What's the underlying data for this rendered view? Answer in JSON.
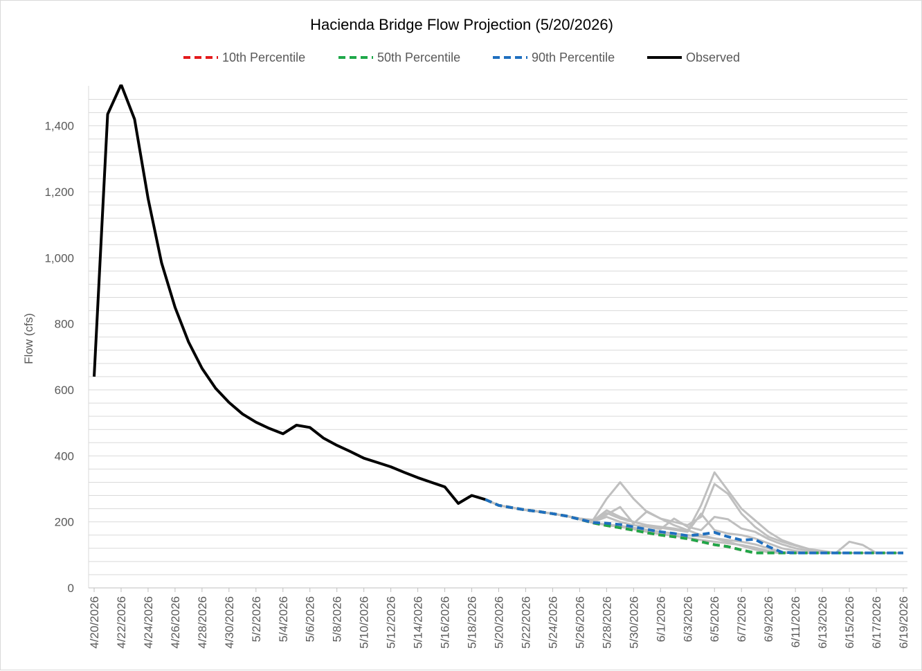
{
  "chart_data": {
    "type": "line",
    "title": "Hacienda Bridge Flow Projection (5/20/2026)",
    "xlabel": "",
    "ylabel": "Flow (cfs)",
    "ylim": [
      0,
      1500
    ],
    "y_ticks": [
      0,
      200,
      400,
      600,
      800,
      1000,
      1200,
      1400
    ],
    "y_tick_labels": [
      "0",
      "200",
      "400",
      "600",
      "800",
      "1,000",
      "1,200",
      "1,400"
    ],
    "y_grid_step": 40,
    "grid": true,
    "legend_position": "top",
    "x_range": [
      "4/20/2026",
      "6/19/2026"
    ],
    "x_tick_labels": [
      "4/20/2026",
      "4/22/2026",
      "4/24/2026",
      "4/26/2026",
      "4/28/2026",
      "4/30/2026",
      "5/2/2026",
      "5/4/2026",
      "5/6/2026",
      "5/8/2026",
      "5/10/2026",
      "5/12/2026",
      "5/14/2026",
      "5/16/2026",
      "5/18/2026",
      "5/20/2026",
      "5/22/2026",
      "5/24/2026",
      "5/26/2026",
      "5/28/2026",
      "5/30/2026",
      "6/1/2026",
      "6/3/2026",
      "6/5/2026",
      "6/7/2026",
      "6/9/2026",
      "6/11/2026",
      "6/13/2026",
      "6/15/2026",
      "6/17/2026",
      "6/19/2026"
    ],
    "legend": [
      {
        "name": "10th Percentile",
        "color": "#e31a1c",
        "style": "dashed"
      },
      {
        "name": "50th Percentile",
        "color": "#1fa84a",
        "style": "dashed"
      },
      {
        "name": "90th Percentile",
        "color": "#1f6fbf",
        "style": "dashed"
      },
      {
        "name": "Observed",
        "color": "#000000",
        "style": "solid"
      }
    ],
    "series": [
      {
        "name": "Observed",
        "color": "#000000",
        "x": [
          "4/20/2026",
          "4/21/2026",
          "4/22/2026",
          "4/23/2026",
          "4/24/2026",
          "4/25/2026",
          "4/26/2026",
          "4/27/2026",
          "4/28/2026",
          "4/29/2026",
          "4/30/2026",
          "5/1/2026",
          "5/2/2026",
          "5/3/2026",
          "5/4/2026",
          "5/5/2026",
          "5/6/2026",
          "5/7/2026",
          "5/8/2026",
          "5/9/2026",
          "5/10/2026",
          "5/11/2026",
          "5/12/2026",
          "5/13/2026",
          "5/14/2026",
          "5/15/2026",
          "5/16/2026",
          "5/17/2026",
          "5/18/2026",
          "5/19/2026"
        ],
        "y": [
          640,
          1435,
          1525,
          1420,
          1180,
          985,
          850,
          745,
          665,
          605,
          562,
          527,
          502,
          483,
          467,
          493,
          486,
          454,
          432,
          413,
          393,
          380,
          367,
          350,
          334,
          320,
          306,
          256,
          280,
          268
        ]
      },
      {
        "name": "10th Percentile",
        "color": "#e31a1c",
        "x": [
          "5/19/2026",
          "5/20/2026",
          "5/21/2026",
          "5/22/2026",
          "5/23/2026",
          "5/24/2026",
          "5/25/2026",
          "5/26/2026",
          "5/27/2026",
          "5/28/2026",
          "5/29/2026",
          "5/30/2026",
          "5/31/2026",
          "6/1/2026",
          "6/2/2026",
          "6/3/2026",
          "6/4/2026",
          "6/5/2026",
          "6/6/2026",
          "6/7/2026",
          "6/8/2026",
          "6/9/2026",
          "6/10/2026",
          "6/11/2026",
          "6/12/2026",
          "6/13/2026",
          "6/14/2026",
          "6/15/2026",
          "6/16/2026",
          "6/17/2026",
          "6/18/2026",
          "6/19/2026"
        ],
        "y": [
          268,
          250,
          243,
          236,
          231,
          225,
          218,
          208,
          197,
          189,
          182,
          175,
          167,
          160,
          155,
          149,
          140,
          131,
          125,
          115,
          106,
          106,
          106,
          106,
          106,
          106,
          106,
          106,
          106,
          106,
          106,
          106
        ]
      },
      {
        "name": "50th Percentile",
        "color": "#1fa84a",
        "x": [
          "5/19/2026",
          "5/20/2026",
          "5/21/2026",
          "5/22/2026",
          "5/23/2026",
          "5/24/2026",
          "5/25/2026",
          "5/26/2026",
          "5/27/2026",
          "5/28/2026",
          "5/29/2026",
          "5/30/2026",
          "5/31/2026",
          "6/1/2026",
          "6/2/2026",
          "6/3/2026",
          "6/4/2026",
          "6/5/2026",
          "6/6/2026",
          "6/7/2026",
          "6/8/2026",
          "6/9/2026",
          "6/10/2026",
          "6/11/2026",
          "6/12/2026",
          "6/13/2026",
          "6/14/2026",
          "6/15/2026",
          "6/16/2026",
          "6/17/2026",
          "6/18/2026",
          "6/19/2026"
        ],
        "y": [
          268,
          250,
          243,
          236,
          231,
          225,
          218,
          208,
          197,
          189,
          182,
          175,
          167,
          160,
          155,
          149,
          140,
          131,
          125,
          115,
          106,
          106,
          106,
          106,
          106,
          106,
          106,
          106,
          106,
          106,
          106,
          106
        ]
      },
      {
        "name": "90th Percentile",
        "color": "#1f6fbf",
        "x": [
          "5/19/2026",
          "5/20/2026",
          "5/21/2026",
          "5/22/2026",
          "5/23/2026",
          "5/24/2026",
          "5/25/2026",
          "5/26/2026",
          "5/27/2026",
          "5/28/2026",
          "5/29/2026",
          "5/30/2026",
          "5/31/2026",
          "6/1/2026",
          "6/2/2026",
          "6/3/2026",
          "6/4/2026",
          "6/5/2026",
          "6/6/2026",
          "6/7/2026",
          "6/8/2026",
          "6/9/2026",
          "6/10/2026",
          "6/11/2026",
          "6/12/2026",
          "6/13/2026",
          "6/14/2026",
          "6/15/2026",
          "6/16/2026",
          "6/17/2026",
          "6/18/2026",
          "6/19/2026"
        ],
        "y": [
          268,
          250,
          243,
          236,
          231,
          225,
          218,
          208,
          198,
          196,
          192,
          185,
          177,
          170,
          165,
          158,
          162,
          168,
          155,
          145,
          147,
          125,
          108,
          106,
          106,
          106,
          106,
          106,
          106,
          106,
          106,
          106
        ]
      }
    ],
    "ensemble_traces": {
      "color": "#bfbfbf",
      "x_start": "5/19/2026",
      "traces": [
        [
          268,
          250,
          243,
          236,
          231,
          225,
          218,
          210,
          206,
          270,
          320,
          270,
          230,
          210,
          190,
          175,
          160,
          150,
          140,
          128,
          116,
          108,
          106,
          106,
          106,
          106,
          106,
          106,
          106,
          106,
          106,
          106
        ],
        [
          268,
          250,
          243,
          236,
          231,
          225,
          218,
          210,
          203,
          235,
          215,
          200,
          190,
          185,
          180,
          172,
          250,
          350,
          295,
          240,
          205,
          170,
          145,
          130,
          118,
          110,
          106,
          106,
          106,
          106,
          106,
          106
        ],
        [
          268,
          250,
          243,
          236,
          231,
          225,
          218,
          210,
          203,
          222,
          245,
          195,
          232,
          210,
          200,
          190,
          215,
          315,
          285,
          225,
          185,
          155,
          140,
          128,
          118,
          112,
          106,
          140,
          130,
          106,
          106,
          106
        ],
        [
          268,
          250,
          243,
          236,
          231,
          225,
          218,
          210,
          200,
          215,
          200,
          190,
          185,
          178,
          210,
          185,
          175,
          215,
          208,
          180,
          170,
          148,
          132,
          120,
          112,
          106,
          106,
          106,
          106,
          106,
          106,
          106
        ],
        [
          268,
          250,
          243,
          236,
          231,
          225,
          218,
          210,
          205,
          227,
          210,
          200,
          190,
          182,
          176,
          170,
          225,
          175,
          165,
          160,
          150,
          135,
          120,
          112,
          106,
          106,
          106,
          106,
          106,
          106,
          106,
          106
        ],
        [
          268,
          250,
          243,
          236,
          231,
          225,
          218,
          208,
          198,
          190,
          185,
          178,
          170,
          163,
          158,
          152,
          145,
          140,
          135,
          130,
          122,
          112,
          106,
          106,
          106,
          106,
          106,
          106,
          106,
          106,
          106,
          106
        ],
        [
          268,
          250,
          243,
          236,
          231,
          225,
          218,
          208,
          197,
          192,
          188,
          182,
          176,
          170,
          165,
          160,
          155,
          150,
          145,
          140,
          132,
          120,
          108,
          106,
          106,
          106,
          106,
          106,
          106,
          106,
          106,
          106
        ]
      ]
    }
  }
}
